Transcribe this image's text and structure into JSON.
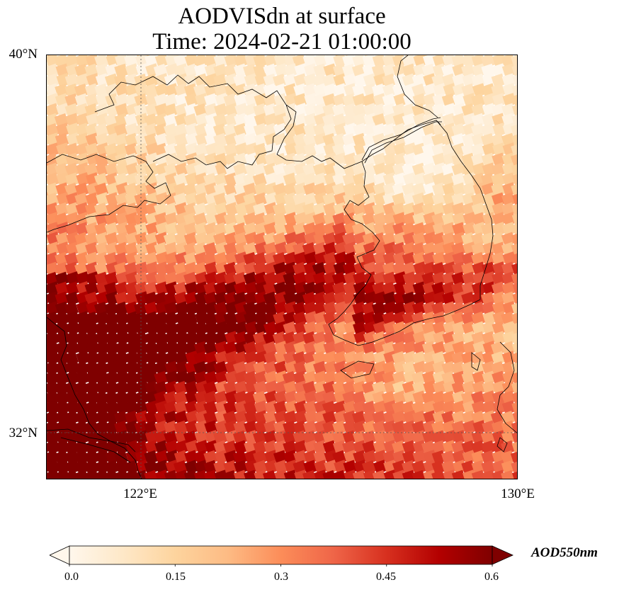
{
  "title": {
    "line1": "AODVISdn at surface",
    "line2": "Time: 2024-02-21 01:00:00"
  },
  "map": {
    "lon_range": [
      120.2,
      130.0
    ],
    "lat_range": [
      31.0,
      40.0
    ],
    "lat_labels": [
      "40°N",
      "32°N"
    ],
    "lon_labels": [
      "122°E",
      "130°E"
    ],
    "gridlines": {
      "lon": 122,
      "lat": 32,
      "style": "dotted"
    },
    "cmap": "OrRd"
  },
  "colorbar": {
    "label": "AOD550nm",
    "min": 0.0,
    "max": 0.6,
    "ticks": [
      "0.0",
      "0.15",
      "0.3",
      "0.45",
      "0.6"
    ],
    "extend": "both",
    "colors": [
      "#fff7ec",
      "#fee8c8",
      "#fdd49e",
      "#fdbb84",
      "#fc8d59",
      "#ef6548",
      "#d7301f",
      "#b30000",
      "#7f0000"
    ]
  }
}
